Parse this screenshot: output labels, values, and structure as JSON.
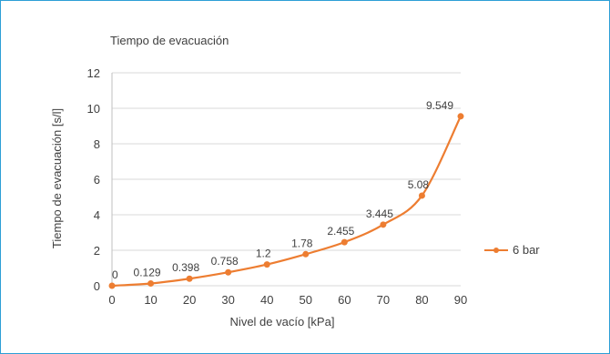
{
  "chart_data": {
    "type": "line",
    "title": "Tiempo de evacuación",
    "xlabel": "Nivel de vacío [kPa]",
    "ylabel": "Tiempo de evacuación [s/l]",
    "xlim": [
      0,
      90
    ],
    "ylim": [
      0,
      12
    ],
    "x_ticks": [
      "0",
      "10",
      "20",
      "30",
      "40",
      "50",
      "60",
      "70",
      "80",
      "90"
    ],
    "y_ticks": [
      "0",
      "2",
      "4",
      "6",
      "8",
      "10",
      "12"
    ],
    "grid": "horizontal",
    "legend_position": "right",
    "series": [
      {
        "name": "6 bar",
        "color": "#ed7d31",
        "x": [
          0,
          10,
          20,
          30,
          40,
          50,
          60,
          70,
          80,
          90
        ],
        "values": [
          0,
          0.129,
          0.398,
          0.758,
          1.2,
          1.78,
          2.455,
          3.445,
          5.08,
          9.549
        ],
        "labels": [
          "0",
          "0.129",
          "0.398",
          "0.758",
          "1.2",
          "1.78",
          "2.455",
          "3.445",
          "5.08",
          "9.549"
        ]
      }
    ]
  }
}
